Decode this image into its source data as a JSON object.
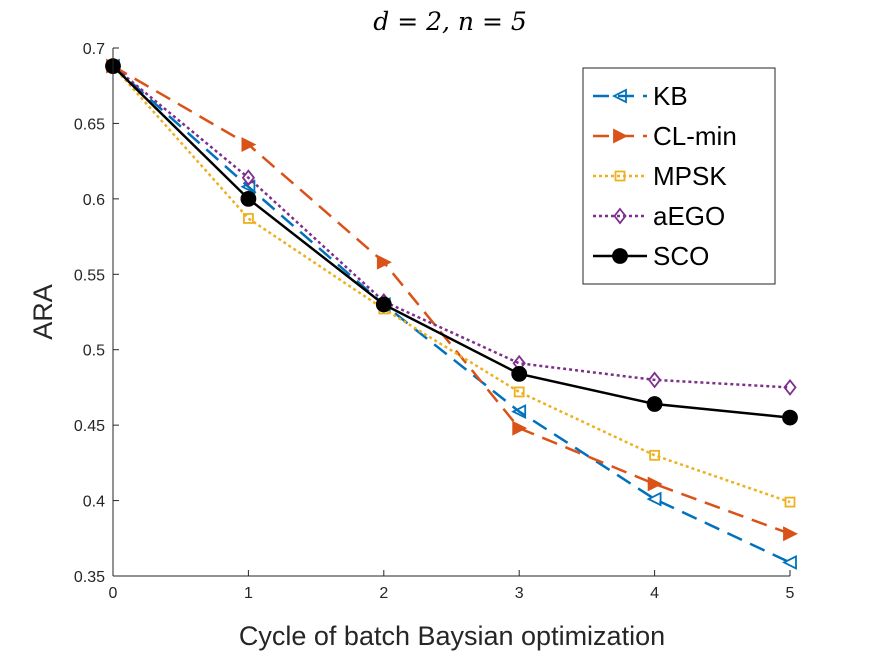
{
  "chart_data": {
    "type": "line",
    "title": "d = 2, n = 5",
    "xlabel": "Cycle of batch Baysian optimization",
    "ylabel": "ARA",
    "xlim": [
      0,
      5
    ],
    "ylim": [
      0.35,
      0.7
    ],
    "xticks": [
      0,
      1,
      2,
      3,
      4,
      5
    ],
    "yticks": [
      0.35,
      0.4,
      0.45,
      0.5,
      0.55,
      0.6,
      0.65,
      0.7
    ],
    "ytick_labels": [
      "0.35",
      "0.4",
      "0.45",
      "0.5",
      "0.55",
      "0.6",
      "0.65",
      "0.7"
    ],
    "x": [
      0,
      1,
      2,
      3,
      4,
      5
    ],
    "legend_position": "top-right",
    "series": [
      {
        "name": "KB",
        "color": "#0072BD",
        "dash": "dashed",
        "marker": "triangle-left",
        "values": [
          0.688,
          0.608,
          0.53,
          0.459,
          0.401,
          0.359
        ]
      },
      {
        "name": "CL-min",
        "color": "#D95319",
        "dash": "dashed",
        "marker": "triangle-right",
        "values": [
          0.688,
          0.636,
          0.558,
          0.448,
          0.411,
          0.378
        ]
      },
      {
        "name": "MPSK",
        "color": "#EDB120",
        "dash": "dotted",
        "marker": "square",
        "values": [
          0.688,
          0.587,
          0.527,
          0.472,
          0.43,
          0.399
        ]
      },
      {
        "name": "aEGO",
        "color": "#7E2F8E",
        "dash": "dotted",
        "marker": "diamond",
        "values": [
          0.688,
          0.614,
          0.532,
          0.491,
          0.48,
          0.475
        ]
      },
      {
        "name": "SCO",
        "color": "#000000",
        "dash": "solid",
        "marker": "circle",
        "values": [
          0.688,
          0.6,
          0.53,
          0.484,
          0.464,
          0.455
        ]
      }
    ]
  }
}
